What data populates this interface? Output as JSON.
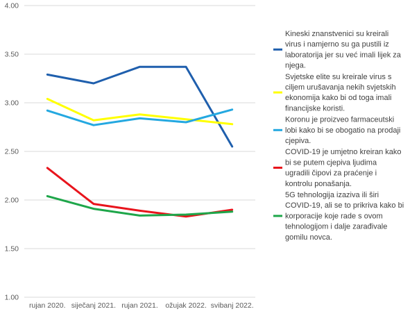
{
  "chart_data": {
    "type": "line",
    "title": "",
    "xlabel": "",
    "ylabel": "",
    "categories": [
      "rujan 2020.",
      "siječanj 2021.",
      "rujan 2021.",
      "ožujak 2022.",
      "svibanj 2022."
    ],
    "ylim": [
      1.0,
      4.0
    ],
    "yticks": [
      "1.00",
      "1.50",
      "2.00",
      "2.50",
      "3.00",
      "3.50",
      "4.00"
    ],
    "grid": true,
    "legend_position": "right",
    "series": [
      {
        "name": "Kineski znanstvenici su kreirali virus i namjerno su ga pustili iz laboratorija jer su već imali lijek za njega.",
        "color": "#1f5fad",
        "values": [
          3.29,
          3.2,
          3.37,
          3.37,
          2.55
        ],
        "legend_lines": [
          "Kineski znanstvenici su kreirali",
          "virus i namjerno su ga pustili iz",
          "laboratorija jer su već imali lijek za",
          "njega."
        ]
      },
      {
        "name": "Svjetske elite su kreirale virus s ciljem urušavanja nekih svjetskih ekonomija kako bi od toga imali financijske koristi.",
        "color": "#ffff00",
        "values": [
          3.04,
          2.82,
          2.88,
          2.83,
          2.78
        ],
        "legend_lines": [
          "Svjetske elite su kreirale virus s",
          "ciljem urušavanja nekih svjetskih",
          "ekonomija kako bi od toga imali",
          "financijske koristi."
        ]
      },
      {
        "name": "Koronu je proizveo farmaceutski lobi kako bi se obogatio na prodaji cjepiva.",
        "color": "#24a8e0",
        "values": [
          2.92,
          2.77,
          2.84,
          2.8,
          2.93
        ],
        "legend_lines": [
          "Koronu je proizveo farmaceutski",
          "lobi kako bi se obogatio na prodaji",
          "cjepiva."
        ]
      },
      {
        "name": "COVID-19 je umjetno kreiran kako bi se putem cjepiva ljudima ugradili čipovi za praćenje i kontrolu ponašanja.",
        "color": "#e8141c",
        "values": [
          2.33,
          1.96,
          1.89,
          1.83,
          1.9
        ],
        "legend_lines": [
          "COVID-19 je umjetno kreiran kako",
          "bi se putem cjepiva ljudima",
          "ugradili čipovi za praćenje i",
          "kontrolu ponašanja."
        ]
      },
      {
        "name": "5G tehnologija izaziva ili širi COVID-19, ali se to prikriva kako bi korporacije koje rade s ovom tehnologijom i dalje zarađivale gomilu novca.",
        "color": "#1ea64a",
        "values": [
          2.04,
          1.91,
          1.84,
          1.85,
          1.88
        ],
        "legend_lines": [
          "5G tehnologija izaziva ili širi",
          "COVID-19, ali se to prikriva kako bi",
          "korporacije koje rade s ovom",
          "tehnologijom i dalje zarađivale",
          "gomilu novca."
        ]
      }
    ]
  }
}
